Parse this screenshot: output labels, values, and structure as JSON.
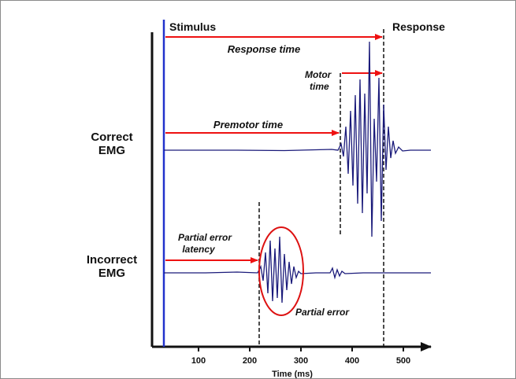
{
  "labels": {
    "stimulus": "Stimulus",
    "response": "Response",
    "response_time": "Response time",
    "motor_time_1": "Motor",
    "motor_time_2": "time",
    "premotor_time": "Premotor time",
    "correct_emg_1": "Correct",
    "correct_emg_2": "EMG",
    "incorrect_emg_1": "Incorrect",
    "incorrect_emg_2": "EMG",
    "partial_error_latency_1": "Partial error",
    "partial_error_latency_2": "latency",
    "partial_error": "Partial error"
  },
  "axis": {
    "xlabel": "Time (ms)",
    "ticks": [
      "100",
      "200",
      "300",
      "400",
      "500"
    ]
  },
  "colors": {
    "stimulus_line": "#2233cc",
    "arrows": "#ee1111",
    "emg_trace": "#1a1a7a",
    "ellipse": "#dd1111"
  }
}
